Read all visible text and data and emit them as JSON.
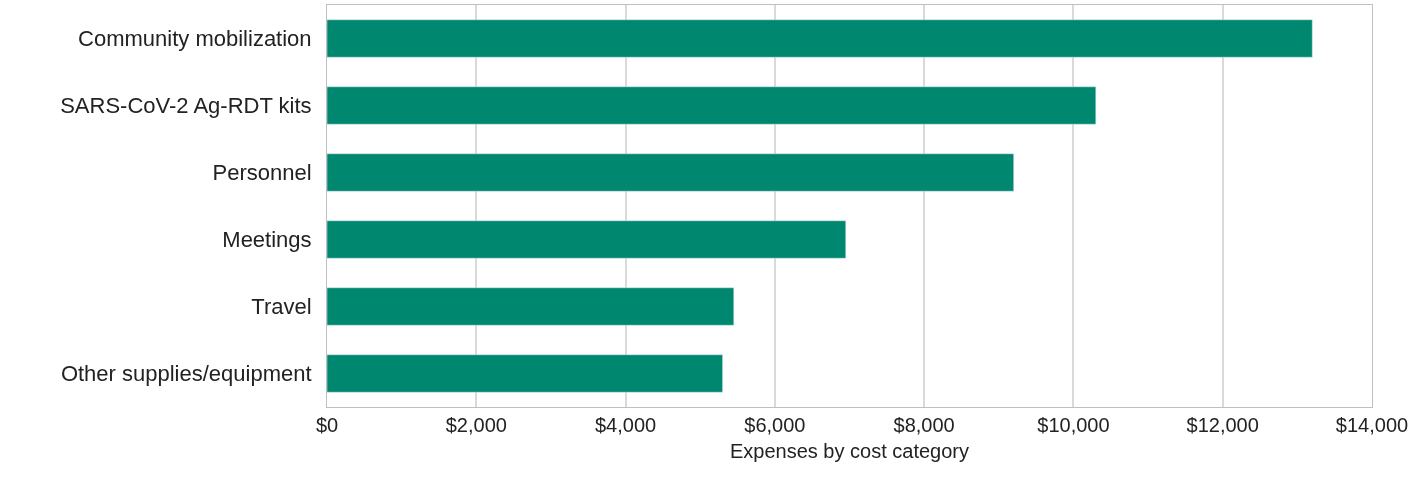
{
  "chart_data": {
    "type": "bar",
    "orientation": "horizontal",
    "xlabel": "Expenses by cost category",
    "categories": [
      "Community mobilization",
      "SARS-CoV-2 Ag-RDT kits",
      "Personnel",
      "Meetings",
      "Travel",
      "Other supplies/equipment"
    ],
    "values": [
      13200,
      10300,
      9200,
      6950,
      5450,
      5300
    ],
    "color": "#00876f",
    "xlim": [
      0,
      14000
    ],
    "xticks": [
      {
        "value": 0,
        "label": "$0"
      },
      {
        "value": 2000,
        "label": "$2,000"
      },
      {
        "value": 4000,
        "label": "$4,000"
      },
      {
        "value": 6000,
        "label": "$6,000"
      },
      {
        "value": 8000,
        "label": "$8,000"
      },
      {
        "value": 10000,
        "label": "$10,000"
      },
      {
        "value": 12000,
        "label": "$12,000"
      },
      {
        "value": 14000,
        "label": "$14,000"
      }
    ],
    "grid": "x"
  }
}
